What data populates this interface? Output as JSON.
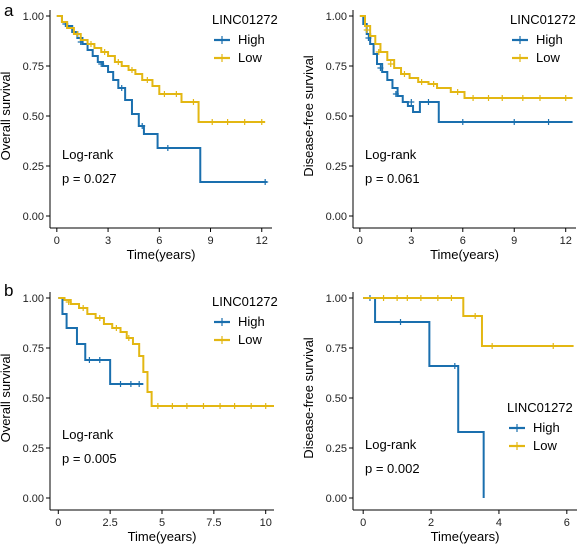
{
  "panel_labels": [
    "a",
    "b"
  ],
  "colors": {
    "High": "#1a6fae",
    "Low": "#e3b713",
    "axis": "#000000"
  },
  "chart_data": [
    {
      "type": "line",
      "subtype": "kaplan-meier",
      "ylabel": "Overall survival",
      "xlabel": "Time(years)",
      "xlim": [
        -0.4,
        12.6
      ],
      "ylim": [
        -0.03,
        1.03
      ],
      "xticks": [
        0,
        3,
        6,
        9,
        12
      ],
      "yticks": [
        "0.00",
        "0.25",
        "0.50",
        "0.75",
        "1.00"
      ],
      "ytick_values": [
        0,
        0.25,
        0.5,
        0.75,
        1.0
      ],
      "legend": {
        "title": "LINC01272",
        "entries": [
          "High",
          "Low"
        ],
        "position": "top-right"
      },
      "annotations": [
        "Log-rank",
        "p = 0.027"
      ],
      "series": [
        {
          "name": "High",
          "x": [
            0,
            0.3,
            0.6,
            0.9,
            1.2,
            1.5,
            1.8,
            2.1,
            2.4,
            2.7,
            3.0,
            3.3,
            3.6,
            4.0,
            4.4,
            4.8,
            5.1,
            5.9,
            8.4,
            12.3
          ],
          "y": [
            1.0,
            0.97,
            0.95,
            0.92,
            0.89,
            0.86,
            0.83,
            0.8,
            0.77,
            0.75,
            0.72,
            0.68,
            0.64,
            0.58,
            0.51,
            0.45,
            0.41,
            0.34,
            0.17,
            0.17
          ],
          "censor_x": [
            0.5,
            1.4,
            2.6,
            3.8,
            5.0,
            6.5,
            12.2
          ],
          "censor_y": [
            0.96,
            0.87,
            0.76,
            0.64,
            0.45,
            0.34,
            0.17
          ]
        },
        {
          "name": "Low",
          "x": [
            0,
            0.3,
            0.6,
            1.0,
            1.4,
            1.8,
            2.2,
            2.6,
            3.0,
            3.4,
            3.8,
            4.2,
            4.6,
            5.0,
            5.6,
            6.0,
            7.3,
            8.3,
            12.2
          ],
          "y": [
            1.0,
            0.97,
            0.94,
            0.91,
            0.88,
            0.86,
            0.84,
            0.82,
            0.8,
            0.77,
            0.75,
            0.73,
            0.71,
            0.68,
            0.65,
            0.61,
            0.57,
            0.47,
            0.47
          ],
          "censor_x": [
            1.2,
            2.0,
            2.8,
            3.6,
            4.4,
            5.3,
            6.3,
            7.0,
            8.0,
            9.1,
            10.0,
            11.0,
            12.0
          ],
          "censor_y": [
            0.91,
            0.86,
            0.82,
            0.77,
            0.73,
            0.68,
            0.61,
            0.61,
            0.57,
            0.47,
            0.47,
            0.47,
            0.47
          ]
        }
      ]
    },
    {
      "type": "line",
      "subtype": "kaplan-meier",
      "ylabel": "Disease-free survival",
      "xlabel": "Time(years)",
      "xlim": [
        -0.4,
        12.6
      ],
      "ylim": [
        -0.03,
        1.03
      ],
      "xticks": [
        0,
        3,
        6,
        9,
        12
      ],
      "yticks": [
        "0.00",
        "0.25",
        "0.50",
        "0.75",
        "1.00"
      ],
      "ytick_values": [
        0,
        0.25,
        0.5,
        0.75,
        1.0
      ],
      "legend": {
        "title": "LINC01272",
        "entries": [
          "High",
          "Low"
        ],
        "position": "top-right"
      },
      "annotations": [
        "Log-rank",
        "p = 0.061"
      ],
      "series": [
        {
          "name": "High",
          "x": [
            0,
            0.2,
            0.4,
            0.6,
            0.8,
            1.0,
            1.3,
            1.6,
            1.9,
            2.2,
            2.5,
            2.8,
            3.1,
            3.5,
            4.6,
            12.4
          ],
          "y": [
            1.0,
            0.96,
            0.91,
            0.86,
            0.81,
            0.76,
            0.72,
            0.68,
            0.64,
            0.6,
            0.57,
            0.55,
            0.52,
            0.57,
            0.47,
            0.47
          ],
          "censor_x": [
            0.5,
            1.2,
            2.1,
            3.0,
            4.0,
            6.0,
            9.0,
            11.0
          ],
          "censor_y": [
            0.89,
            0.74,
            0.61,
            0.57,
            0.57,
            0.47,
            0.47,
            0.47
          ]
        },
        {
          "name": "Low",
          "x": [
            0,
            0.3,
            0.6,
            0.9,
            1.2,
            1.6,
            2.0,
            2.4,
            2.9,
            3.4,
            4.0,
            4.5,
            5.3,
            6.1,
            12.4
          ],
          "y": [
            1.0,
            0.95,
            0.9,
            0.86,
            0.82,
            0.78,
            0.74,
            0.71,
            0.69,
            0.67,
            0.66,
            0.64,
            0.62,
            0.59,
            0.59
          ],
          "censor_x": [
            0.4,
            1.1,
            1.8,
            2.6,
            3.6,
            4.3,
            5.7,
            6.6,
            7.5,
            8.3,
            9.5,
            10.5,
            12.0
          ],
          "censor_y": [
            0.93,
            0.82,
            0.76,
            0.71,
            0.67,
            0.66,
            0.62,
            0.59,
            0.59,
            0.59,
            0.59,
            0.59,
            0.59
          ]
        }
      ]
    },
    {
      "type": "line",
      "subtype": "kaplan-meier",
      "ylabel": "Overall survival",
      "xlabel": "Time(years)",
      "xlim": [
        -0.4,
        10.4
      ],
      "ylim": [
        -0.03,
        1.03
      ],
      "xticks": [
        "0",
        "2.5",
        "5",
        "7.5",
        "10"
      ],
      "xtick_values": [
        0,
        2.5,
        5,
        7.5,
        10
      ],
      "yticks": [
        "0.00",
        "0.25",
        "0.50",
        "0.75",
        "1.00"
      ],
      "ytick_values": [
        0,
        0.25,
        0.5,
        0.75,
        1.0
      ],
      "legend": {
        "title": "LINC01272",
        "entries": [
          "High",
          "Low"
        ],
        "position": "top-right"
      },
      "annotations": [
        "Log-rank",
        "p = 0.005"
      ],
      "series": [
        {
          "name": "High",
          "x": [
            0,
            0.2,
            0.4,
            0.9,
            1.3,
            1.8,
            2.5,
            3.2,
            4.1
          ],
          "y": [
            1.0,
            0.92,
            0.85,
            0.77,
            0.69,
            0.69,
            0.57,
            0.57,
            0.57
          ],
          "censor_x": [
            1.5,
            2.0,
            3.0,
            3.5,
            3.9
          ],
          "censor_y": [
            0.69,
            0.69,
            0.57,
            0.57,
            0.57
          ]
        },
        {
          "name": "Low",
          "x": [
            0,
            0.3,
            0.6,
            1.0,
            1.4,
            1.8,
            2.2,
            2.6,
            3.0,
            3.3,
            3.6,
            3.9,
            4.1,
            4.3,
            4.5,
            10.4
          ],
          "y": [
            1.0,
            0.99,
            0.97,
            0.95,
            0.92,
            0.9,
            0.87,
            0.85,
            0.83,
            0.8,
            0.77,
            0.71,
            0.63,
            0.53,
            0.46,
            0.46
          ],
          "censor_x": [
            0.5,
            1.2,
            2.0,
            2.8,
            3.4,
            4.8,
            5.5,
            6.2,
            7.0,
            7.8,
            8.5,
            9.3,
            10.0
          ],
          "censor_y": [
            0.98,
            0.95,
            0.9,
            0.85,
            0.8,
            0.46,
            0.46,
            0.46,
            0.46,
            0.46,
            0.46,
            0.46,
            0.46
          ]
        }
      ]
    },
    {
      "type": "line",
      "subtype": "kaplan-meier",
      "ylabel": "Disease-free survival",
      "xlabel": "Time(years)",
      "xlim": [
        -0.3,
        6.3
      ],
      "ylim": [
        -0.03,
        1.03
      ],
      "xticks": [
        0,
        2,
        4,
        6
      ],
      "yticks": [
        "0.00",
        "0.25",
        "0.50",
        "0.75",
        "1.00"
      ],
      "ytick_values": [
        0,
        0.25,
        0.5,
        0.75,
        1.0
      ],
      "legend": {
        "title": "LINC01272",
        "entries": [
          "High",
          "Low"
        ],
        "position": "bottom-right"
      },
      "annotations": [
        "Log-rank",
        "p = 0.002"
      ],
      "series": [
        {
          "name": "High",
          "x": [
            0,
            0.35,
            1.95,
            2.8,
            3.55
          ],
          "y": [
            1.0,
            0.88,
            0.66,
            0.33,
            0.0
          ],
          "censor_x": [
            0.2,
            1.1,
            2.7
          ],
          "censor_y": [
            1.0,
            0.88,
            0.66
          ]
        },
        {
          "name": "Low",
          "x": [
            0,
            2.95,
            3.5,
            6.2
          ],
          "y": [
            1.0,
            0.91,
            0.76,
            0.76
          ],
          "censor_x": [
            0.6,
            1.0,
            1.3,
            1.7,
            2.2,
            2.6,
            3.3,
            3.8,
            5.6
          ],
          "censor_y": [
            1.0,
            1.0,
            1.0,
            1.0,
            1.0,
            1.0,
            0.91,
            0.76,
            0.76
          ]
        }
      ]
    }
  ]
}
